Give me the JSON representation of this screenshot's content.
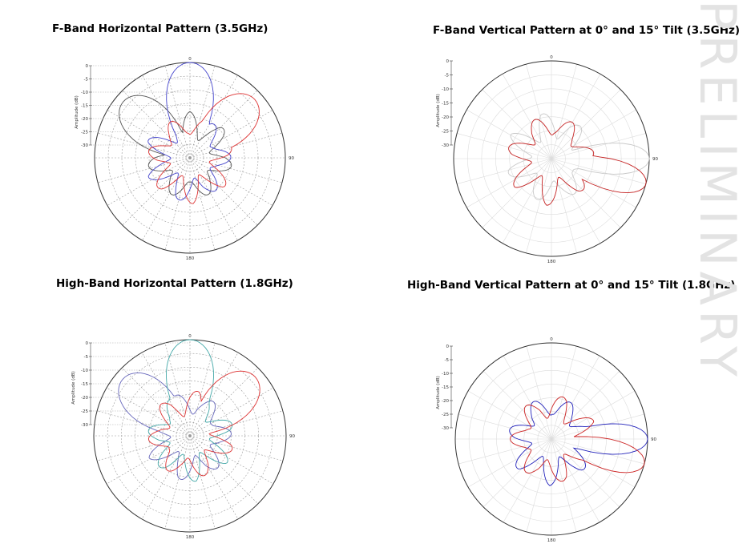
{
  "watermark": "PRELIMINARY",
  "chart_data": [
    {
      "type": "polar",
      "title": "F-Band Horizontal Pattern (3.5GHz)",
      "rlabel": "Amplitude (dB)",
      "rticks": [
        "0",
        "-5",
        "-10",
        "-15",
        "-20",
        "-25",
        "-30"
      ],
      "angle_labels": [
        "0",
        "90",
        "180"
      ],
      "rlim": [
        -35,
        0
      ],
      "grid": true,
      "series": [
        {
          "color": "#555555",
          "lobe": {
            "peak_deg": -50,
            "peak_db": -3,
            "width": 24
          }
        },
        {
          "color": "#4444cc",
          "lobe": {
            "peak_deg": 0,
            "peak_db": 0,
            "width": 22
          }
        },
        {
          "color": "#dd3333",
          "lobe": {
            "peak_deg": 48,
            "peak_db": -3,
            "width": 24
          }
        }
      ]
    },
    {
      "type": "polar",
      "title": "F-Band Vertical Pattern at 0° and 15° Tilt (3.5GHz)",
      "rlabel": "Amplitude (dB)",
      "rticks": [
        "0",
        "-5",
        "-10",
        "-15",
        "-20",
        "-25",
        "-30"
      ],
      "angle_labels": [
        "0",
        "90",
        "180"
      ],
      "rlim": [
        -35,
        0
      ],
      "grid": true,
      "series": [
        {
          "color": "#c9c9c9",
          "lobe": {
            "peak_deg": 90,
            "peak_db": 0,
            "width": 14
          }
        },
        {
          "color": "#c42020",
          "lobe": {
            "peak_deg": 105,
            "peak_db": 0,
            "width": 14
          }
        }
      ]
    },
    {
      "type": "polar",
      "title": "High-Band Horizontal Pattern (1.8GHz)",
      "rlabel": "Amplitude (dB)",
      "rticks": [
        "0",
        "-5",
        "-10",
        "-15",
        "-20",
        "-25",
        "-30"
      ],
      "angle_labels": [
        "0",
        "90",
        "180"
      ],
      "rlim": [
        -35,
        0
      ],
      "grid": true,
      "series": [
        {
          "color": "#6666bb",
          "lobe": {
            "peak_deg": -50,
            "peak_db": -3,
            "width": 24
          }
        },
        {
          "color": "#44a8a8",
          "lobe": {
            "peak_deg": 0,
            "peak_db": 0,
            "width": 22
          }
        },
        {
          "color": "#dd3333",
          "lobe": {
            "peak_deg": 48,
            "peak_db": -3,
            "width": 24
          }
        }
      ]
    },
    {
      "type": "polar",
      "title": "High-Band Vertical Pattern at 0° and 15° Tilt (1.8GHz)",
      "rlabel": "Amplitude (dB)",
      "rticks": [
        "0",
        "-5",
        "-10",
        "-15",
        "-20",
        "-25",
        "-30"
      ],
      "angle_labels": [
        "0",
        "90",
        "180"
      ],
      "rlim": [
        -35,
        0
      ],
      "grid": true,
      "series": [
        {
          "color": "#2222bb",
          "lobe": {
            "peak_deg": 90,
            "peak_db": 0,
            "width": 14
          }
        },
        {
          "color": "#cc2222",
          "lobe": {
            "peak_deg": 105,
            "peak_db": 0,
            "width": 14
          }
        }
      ]
    }
  ]
}
